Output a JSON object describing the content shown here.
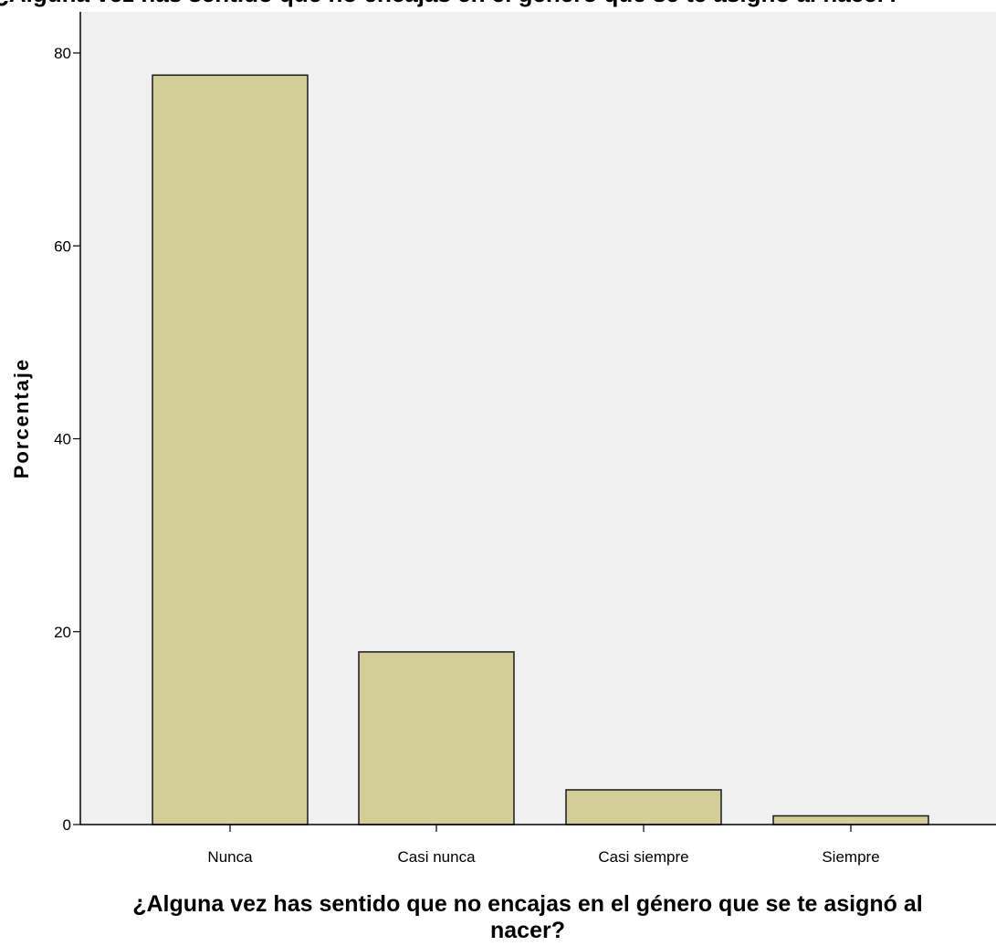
{
  "chart_data": {
    "type": "bar",
    "title_cropped": "¿Alguna vez has sentido que no encajas en el género que se te asignó al nacer?",
    "categories": [
      "Nunca",
      "Casi nunca",
      "Casi siempre",
      "Siempre"
    ],
    "values": [
      77.7,
      17.9,
      3.6,
      0.9
    ],
    "xlabel_line1": "¿Alguna vez has sentido que no encajas en el género que se te asignó al",
    "xlabel_line2": "nacer?",
    "ylabel": "Porcentaje",
    "ylim": [
      0,
      84
    ],
    "yticks": [
      0,
      20,
      40,
      60,
      80
    ],
    "grid": false,
    "legend": "none",
    "colors": {
      "bar_fill": "#d3cd97",
      "bar_stroke": "#1a1a1a",
      "plot_bg": "#f0f0f0",
      "axis": "#000000"
    }
  }
}
